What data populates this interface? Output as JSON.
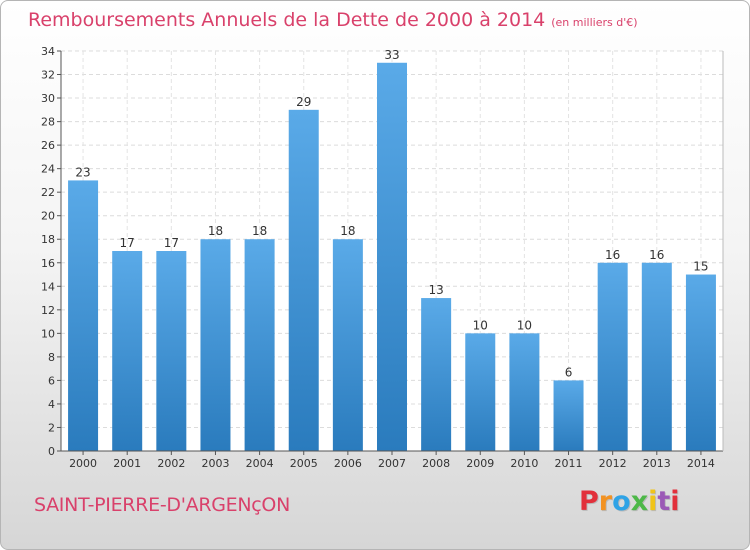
{
  "header": {
    "title": "Remboursements Annuels de la Dette de 2000 à 2014",
    "unit": "(en milliers d'€)"
  },
  "footer": {
    "city": "SAINT-PIERRE-D'ARGENçON",
    "logo": "Proxiti",
    "logo_colors": [
      "#e2303b",
      "#f29222",
      "#2fa3e6",
      "#4db848",
      "#f0c419",
      "#9b59b6",
      "#e2303b"
    ]
  },
  "colors": {
    "title": "#d9416b",
    "bar_light": "#5aaae8",
    "bar_dark": "#2a7bbd"
  },
  "chart_data": {
    "type": "bar",
    "categories": [
      "2000",
      "2001",
      "2002",
      "2003",
      "2004",
      "2005",
      "2006",
      "2007",
      "2008",
      "2009",
      "2010",
      "2011",
      "2012",
      "2013",
      "2014"
    ],
    "values": [
      23,
      17,
      17,
      18,
      18,
      29,
      18,
      33,
      13,
      10,
      10,
      6,
      16,
      16,
      15
    ],
    "ylim": [
      0,
      34
    ],
    "yticks": [
      0,
      2,
      4,
      6,
      8,
      10,
      12,
      14,
      16,
      18,
      20,
      22,
      24,
      26,
      28,
      30,
      32,
      34
    ],
    "grid": true,
    "data_labels": true
  }
}
